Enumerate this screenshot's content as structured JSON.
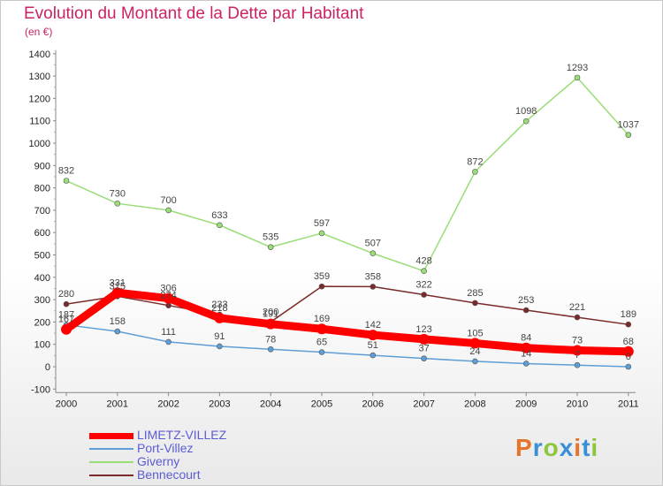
{
  "chart_data": {
    "type": "line",
    "title": "Evolution du Montant de la Dette par Habitant",
    "subtitle": "(en €)",
    "x": [
      "2000",
      "2001",
      "2002",
      "2003",
      "2004",
      "2005",
      "2006",
      "2007",
      "2008",
      "2009",
      "2010",
      "2011"
    ],
    "yticks": [
      "1400",
      "1300",
      "1200",
      "1100",
      "1000",
      "900",
      "800",
      "700",
      "600",
      "500",
      "400",
      "300",
      "200",
      "100",
      "0",
      "-100"
    ],
    "ylim": [
      -100,
      1400
    ],
    "grid": false,
    "legend_position": "bottom-left",
    "series": [
      {
        "name": "LIMETZ-VILLEZ",
        "color": "#ff0000",
        "values": [
          167,
          331,
          306,
          218,
          191,
          169,
          142,
          123,
          105,
          84,
          73,
          68
        ],
        "labels": [
          "167",
          "331",
          "306",
          "218",
          "191",
          "169",
          "142",
          "123",
          "105",
          "84",
          "73",
          "68"
        ]
      },
      {
        "name": "Port-Villez",
        "color": "#5e9ed6",
        "values": [
          187,
          158,
          111,
          91,
          78,
          65,
          51,
          37,
          24,
          14,
          7,
          0
        ],
        "labels": [
          "187",
          "158",
          "111",
          "91",
          "78",
          "65",
          "51",
          "37",
          "24",
          "14",
          "7",
          "0"
        ]
      },
      {
        "name": "Giverny",
        "color": "#99dd77",
        "values": [
          832,
          730,
          700,
          633,
          535,
          597,
          507,
          428,
          872,
          1098,
          1293,
          1037
        ],
        "labels": [
          "832",
          "730",
          "700",
          "633",
          "535",
          "597",
          "507",
          "428",
          "872",
          "1098",
          "1293",
          "1037"
        ]
      },
      {
        "name": "Bennecourt",
        "color": "#7a2a2a",
        "values": [
          280,
          315,
          274,
          233,
          200,
          359,
          358,
          322,
          285,
          253,
          221,
          189
        ],
        "labels": [
          "280",
          "315",
          "274",
          "233",
          "200",
          "359",
          "358",
          "322",
          "285",
          "253",
          "221",
          "189"
        ]
      }
    ]
  },
  "logo": {
    "letters": [
      "P",
      "r",
      "o",
      "x",
      "i",
      "t",
      "i"
    ],
    "colors": [
      "#e8732a",
      "#3a8fd6",
      "#8cc63f",
      "#3a8fd6",
      "#e8732a",
      "#3a8fd6",
      "#8cc63f"
    ]
  }
}
